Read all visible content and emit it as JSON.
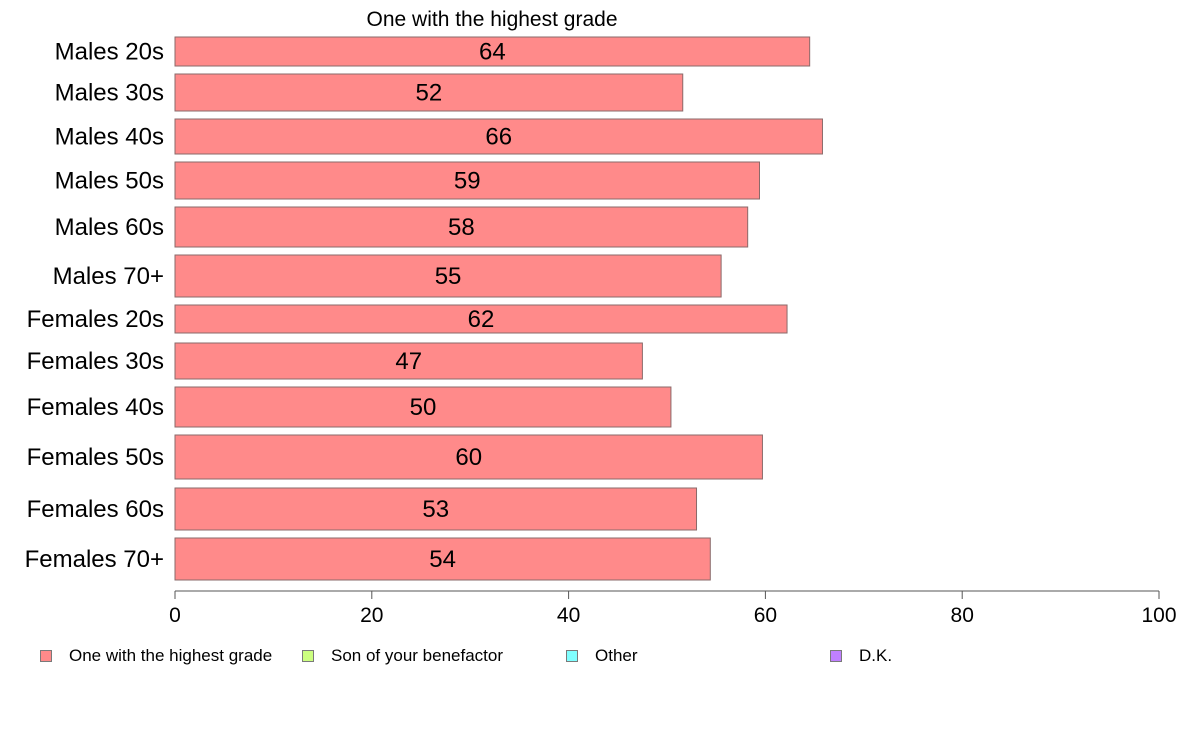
{
  "chart_data": {
    "type": "bar",
    "orientation": "horizontal",
    "title": "One with the highest grade",
    "categories": [
      "Males 20s",
      "Males 30s",
      "Males 40s",
      "Males 50s",
      "Males 60s",
      "Males 70+",
      "Females 20s",
      "Females 30s",
      "Females 40s",
      "Females 50s",
      "Females 60s",
      "Females 70+"
    ],
    "series": [
      {
        "name": "One with the highest grade",
        "color": "#ff8a8a",
        "values": [
          64.5,
          51.6,
          65.8,
          59.4,
          58.2,
          55.5,
          62.2,
          47.5,
          50.4,
          59.7,
          53.0,
          54.4
        ],
        "labels": [
          "64",
          "52",
          "66",
          "59",
          "58",
          "55",
          "62",
          "47",
          "50",
          "60",
          "53",
          "54"
        ]
      }
    ],
    "xlim": [
      0,
      100
    ],
    "xticks": [
      "0",
      "20",
      "40",
      "60",
      "80",
      "100"
    ],
    "xlabel": "",
    "ylabel": "",
    "grid": false,
    "legend_position": "bottom",
    "legend": [
      {
        "label": "One with the highest grade",
        "color": "#ff8a8a"
      },
      {
        "label": "Son of your benefactor",
        "color": "#ccff80"
      },
      {
        "label": "Other",
        "color": "#80ffff"
      },
      {
        "label": "D.K.",
        "color": "#c080ff"
      }
    ]
  }
}
